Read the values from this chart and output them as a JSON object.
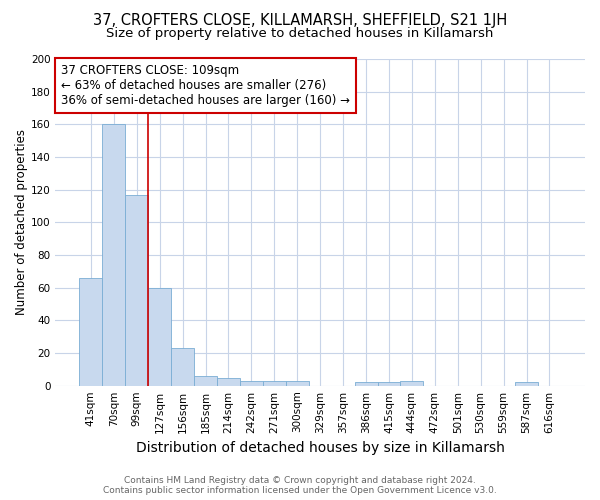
{
  "title_line1": "37, CROFTERS CLOSE, KILLAMARSH, SHEFFIELD, S21 1JH",
  "title_line2": "Size of property relative to detached houses in Killamarsh",
  "xlabel": "Distribution of detached houses by size in Killamarsh",
  "ylabel": "Number of detached properties",
  "footer_line1": "Contains HM Land Registry data © Crown copyright and database right 2024.",
  "footer_line2": "Contains public sector information licensed under the Open Government Licence v3.0.",
  "annotation_line1": "37 CROFTERS CLOSE: 109sqm",
  "annotation_line2": "← 63% of detached houses are smaller (276)",
  "annotation_line3": "36% of semi-detached houses are larger (160) →",
  "categories": [
    "41sqm",
    "70sqm",
    "99sqm",
    "127sqm",
    "156sqm",
    "185sqm",
    "214sqm",
    "242sqm",
    "271sqm",
    "300sqm",
    "329sqm",
    "357sqm",
    "386sqm",
    "415sqm",
    "444sqm",
    "472sqm",
    "501sqm",
    "530sqm",
    "559sqm",
    "587sqm",
    "616sqm"
  ],
  "values": [
    66,
    160,
    117,
    60,
    23,
    6,
    5,
    3,
    3,
    3,
    0,
    0,
    2,
    2,
    3,
    0,
    0,
    0,
    0,
    2,
    0
  ],
  "bar_color": "#c8d9ee",
  "bar_edge_color": "#7aadd4",
  "vline_color": "#cc0000",
  "vline_x_index": 2,
  "annotation_box_edge_color": "#cc0000",
  "background_color": "#ffffff",
  "ylim": [
    0,
    200
  ],
  "yticks": [
    0,
    20,
    40,
    60,
    80,
    100,
    120,
    140,
    160,
    180,
    200
  ],
  "grid_color": "#c8d4e8",
  "title1_fontsize": 10.5,
  "title2_fontsize": 9.5,
  "xlabel_fontsize": 10,
  "ylabel_fontsize": 8.5,
  "tick_fontsize": 7.5,
  "footer_fontsize": 6.5,
  "annotation_fontsize": 8.5
}
